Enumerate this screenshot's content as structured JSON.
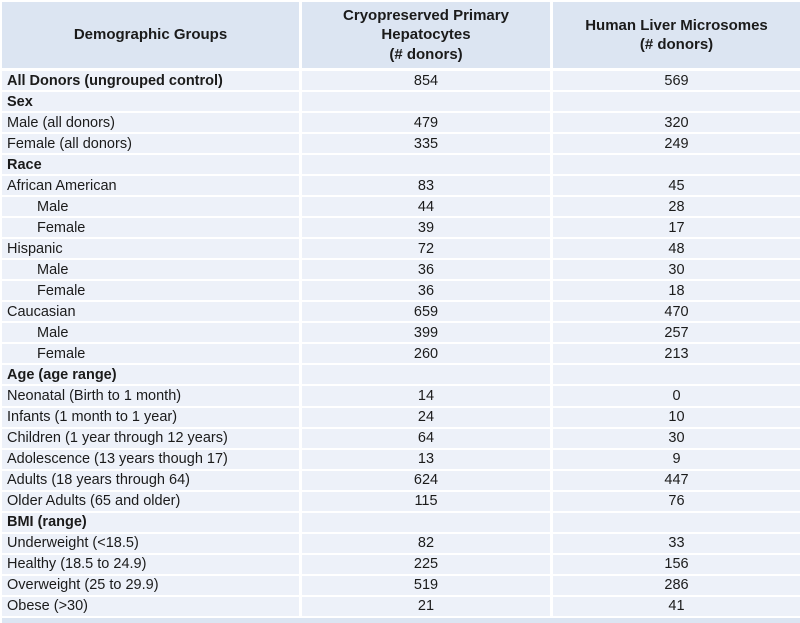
{
  "colors": {
    "header_bg": "#dce5f2",
    "row_bg": "#edf1f9",
    "grid": "#ffffff",
    "text": "#1b1b1b"
  },
  "table": {
    "headers": [
      {
        "lines": [
          "Demographic Groups"
        ]
      },
      {
        "lines": [
          "Cryopreserved Primary",
          "Hepatocytes",
          "(# donors)"
        ]
      },
      {
        "lines": [
          "Human Liver Microsomes",
          "(# donors)"
        ]
      }
    ],
    "rows": [
      {
        "label": "All Donors (ungrouped control)",
        "bold": true,
        "indent": false,
        "hepatocytes": "854",
        "microsomes": "569"
      },
      {
        "label": "Sex",
        "bold": true,
        "indent": false,
        "hepatocytes": "",
        "microsomes": ""
      },
      {
        "label": "Male (all donors)",
        "bold": false,
        "indent": false,
        "hepatocytes": "479",
        "microsomes": "320"
      },
      {
        "label": "Female (all donors)",
        "bold": false,
        "indent": false,
        "hepatocytes": "335",
        "microsomes": "249"
      },
      {
        "label": "Race",
        "bold": true,
        "indent": false,
        "hepatocytes": "",
        "microsomes": ""
      },
      {
        "label": "African American",
        "bold": false,
        "indent": false,
        "hepatocytes": "83",
        "microsomes": "45"
      },
      {
        "label": "Male",
        "bold": false,
        "indent": true,
        "hepatocytes": "44",
        "microsomes": "28"
      },
      {
        "label": "Female",
        "bold": false,
        "indent": true,
        "hepatocytes": "39",
        "microsomes": "17"
      },
      {
        "label": "Hispanic",
        "bold": false,
        "indent": false,
        "hepatocytes": "72",
        "microsomes": "48"
      },
      {
        "label": "Male",
        "bold": false,
        "indent": true,
        "hepatocytes": "36",
        "microsomes": "30"
      },
      {
        "label": "Female",
        "bold": false,
        "indent": true,
        "hepatocytes": "36",
        "microsomes": "18"
      },
      {
        "label": "Caucasian",
        "bold": false,
        "indent": false,
        "hepatocytes": "659",
        "microsomes": "470"
      },
      {
        "label": "Male",
        "bold": false,
        "indent": true,
        "hepatocytes": "399",
        "microsomes": "257"
      },
      {
        "label": "Female",
        "bold": false,
        "indent": true,
        "hepatocytes": "260",
        "microsomes": "213"
      },
      {
        "label": "Age (age range)",
        "bold": true,
        "indent": false,
        "hepatocytes": "",
        "microsomes": ""
      },
      {
        "label": "Neonatal (Birth to 1 month)",
        "bold": false,
        "indent": false,
        "hepatocytes": "14",
        "microsomes": "0"
      },
      {
        "label": "Infants (1 month to 1 year)",
        "bold": false,
        "indent": false,
        "hepatocytes": "24",
        "microsomes": "10"
      },
      {
        "label": "Children (1 year through 12 years)",
        "bold": false,
        "indent": false,
        "hepatocytes": "64",
        "microsomes": "30"
      },
      {
        "label": "Adolescence (13 years though 17)",
        "bold": false,
        "indent": false,
        "hepatocytes": "13",
        "microsomes": "9"
      },
      {
        "label": "Adults (18 years through 64)",
        "bold": false,
        "indent": false,
        "hepatocytes": "624",
        "microsomes": "447"
      },
      {
        "label": "Older Adults (65 and older)",
        "bold": false,
        "indent": false,
        "hepatocytes": "115",
        "microsomes": "76"
      },
      {
        "label": "BMI (range)",
        "bold": true,
        "indent": false,
        "hepatocytes": "",
        "microsomes": ""
      },
      {
        "label": "Underweight (<18.5)",
        "bold": false,
        "indent": false,
        "hepatocytes": "82",
        "microsomes": "33"
      },
      {
        "label": "Healthy (18.5 to 24.9)",
        "bold": false,
        "indent": false,
        "hepatocytes": "225",
        "microsomes": "156"
      },
      {
        "label": "Overweight (25 to 29.9)",
        "bold": false,
        "indent": false,
        "hepatocytes": "519",
        "microsomes": "286"
      },
      {
        "label": "Obese (>30)",
        "bold": false,
        "indent": false,
        "hepatocytes": "21",
        "microsomes": "41"
      }
    ]
  }
}
